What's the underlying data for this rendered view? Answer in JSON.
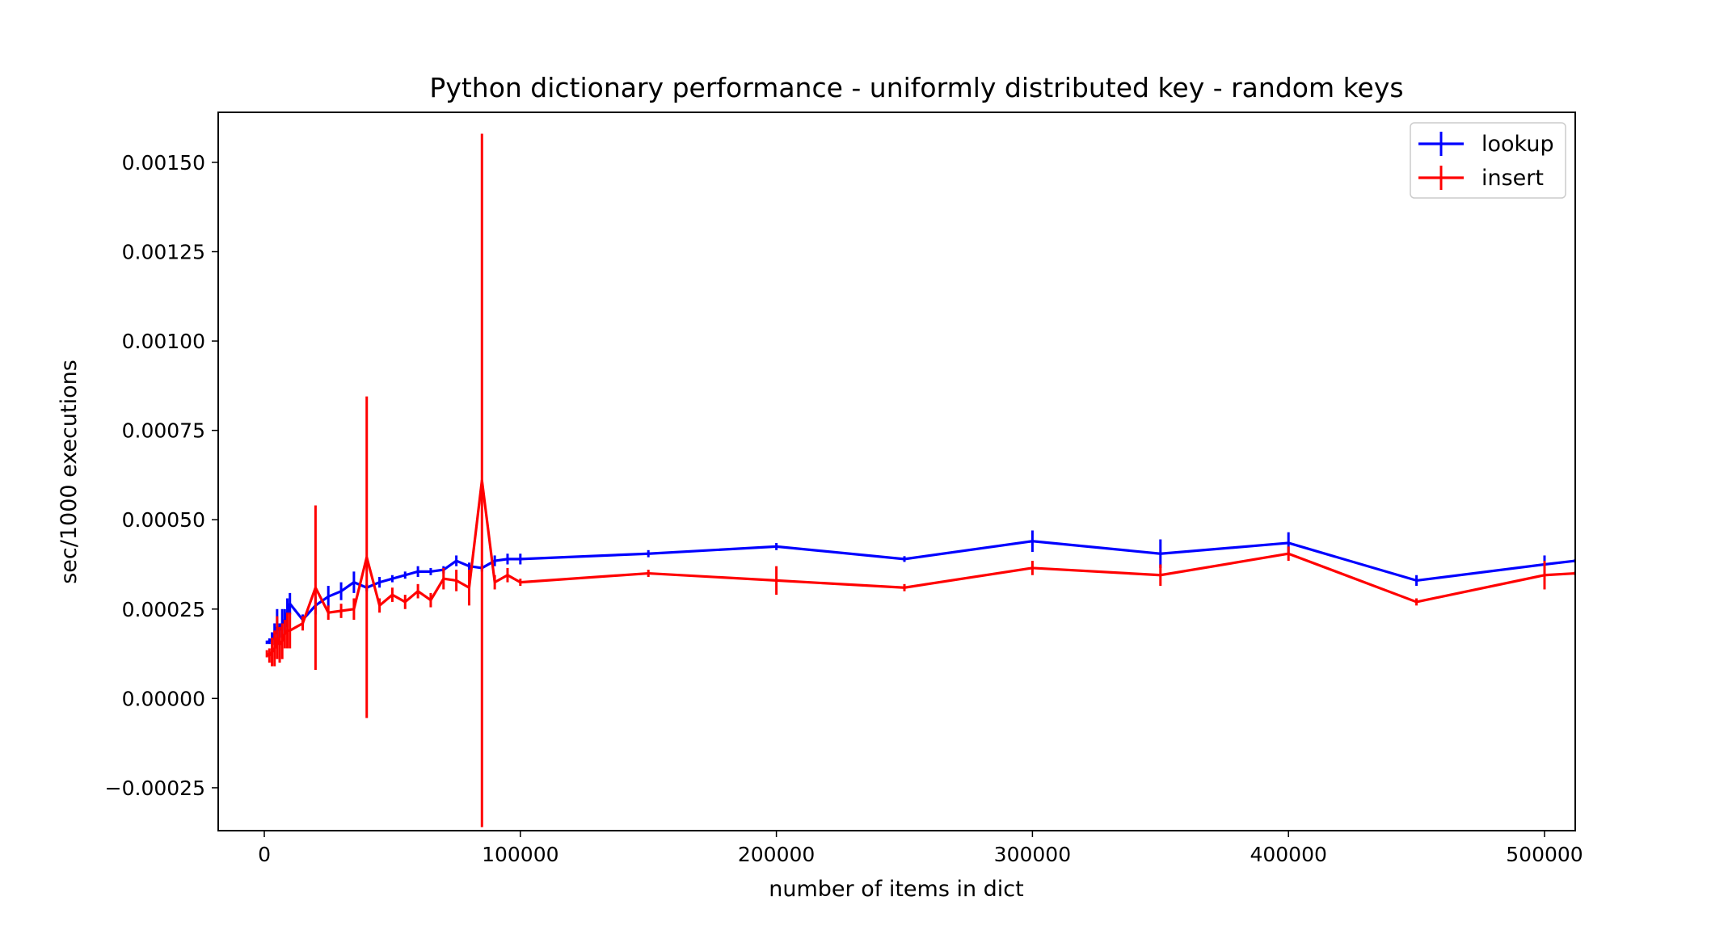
{
  "chart_data": {
    "type": "line",
    "title": "Python dictionary performance - uniformly distributed key - random keys",
    "xlabel": "number of items in dict",
    "ylabel": "sec/1000 executions",
    "xlim": [
      -18000,
      512000
    ],
    "ylim": [
      -0.00037,
      0.00164
    ],
    "x_ticks": [
      0,
      100000,
      200000,
      300000,
      400000,
      500000
    ],
    "x_tick_labels": [
      "0",
      "100000",
      "200000",
      "300000",
      "400000",
      "500000"
    ],
    "y_ticks": [
      -0.00025,
      0.0,
      0.00025,
      0.0005,
      0.00075,
      0.001,
      0.00125,
      0.0015
    ],
    "y_tick_labels": [
      "−0.00025",
      "0.00000",
      "0.00025",
      "0.00050",
      "0.00075",
      "0.00100",
      "0.00125",
      "0.00150"
    ],
    "grid": false,
    "legend_position": "top-right",
    "series": [
      {
        "name": "lookup",
        "color": "#0000ff",
        "x": [
          1000,
          2000,
          3000,
          4000,
          5000,
          6000,
          7000,
          8000,
          9000,
          10000,
          15000,
          20000,
          25000,
          30000,
          35000,
          40000,
          45000,
          50000,
          55000,
          60000,
          65000,
          70000,
          75000,
          80000,
          85000,
          90000,
          95000,
          100000,
          150000,
          200000,
          250000,
          300000,
          350000,
          400000,
          450000,
          500000,
          512000
        ],
        "y": [
          0.000157,
          0.00016,
          0.000165,
          0.00018,
          0.0002,
          0.00019,
          0.00021,
          0.00022,
          0.00024,
          0.000265,
          0.00022,
          0.00026,
          0.000285,
          0.0003,
          0.000325,
          0.00031,
          0.000325,
          0.000335,
          0.000345,
          0.000355,
          0.000355,
          0.00036,
          0.000385,
          0.00037,
          0.000365,
          0.000385,
          0.00039,
          0.00039,
          0.000405,
          0.000425,
          0.00039,
          0.00044,
          0.000405,
          0.000435,
          0.00033,
          0.000375,
          0.000385
        ],
        "err": [
          5e-06,
          8e-06,
          2e-05,
          3e-05,
          5e-05,
          2e-05,
          4e-05,
          3e-05,
          4e-05,
          3e-05,
          1.5e-05,
          2.5e-05,
          3e-05,
          2.5e-05,
          3e-05,
          1e-05,
          1.5e-05,
          1e-05,
          1e-05,
          1.5e-05,
          1e-05,
          1e-05,
          1.5e-05,
          1e-05,
          1e-05,
          1.5e-05,
          1.5e-05,
          1.5e-05,
          1e-05,
          1e-05,
          8e-06,
          3e-05,
          4e-05,
          3e-05,
          1.5e-05,
          2.5e-05,
          5e-06
        ]
      },
      {
        "name": "insert",
        "color": "#ff0000",
        "x": [
          1000,
          2000,
          3000,
          4000,
          5000,
          6000,
          7000,
          8000,
          9000,
          10000,
          15000,
          20000,
          25000,
          30000,
          35000,
          40000,
          45000,
          50000,
          55000,
          60000,
          65000,
          70000,
          75000,
          80000,
          85000,
          90000,
          95000,
          100000,
          150000,
          200000,
          250000,
          300000,
          350000,
          400000,
          450000,
          500000,
          512000
        ],
        "y": [
          0.000125,
          0.00012,
          0.00013,
          0.00014,
          0.00017,
          0.00015,
          0.00016,
          0.00018,
          0.00019,
          0.00019,
          0.00021,
          0.00031,
          0.00024,
          0.000245,
          0.00025,
          0.000395,
          0.00026,
          0.00029,
          0.00027,
          0.0003,
          0.000275,
          0.000335,
          0.00033,
          0.00031,
          0.00061,
          0.000325,
          0.000345,
          0.000325,
          0.00035,
          0.00033,
          0.00031,
          0.000365,
          0.000345,
          0.000405,
          0.00027,
          0.000345,
          0.00035
        ],
        "err": [
          1e-05,
          2e-05,
          4e-05,
          5e-05,
          6e-05,
          5e-05,
          5e-05,
          4e-05,
          5e-05,
          5e-05,
          2e-05,
          0.00023,
          2e-05,
          2e-05,
          3e-05,
          0.00045,
          2e-05,
          2e-05,
          2e-05,
          2e-05,
          2e-05,
          3e-05,
          3e-05,
          5e-05,
          0.00097,
          2e-05,
          2e-05,
          1e-05,
          1e-05,
          4e-05,
          1e-05,
          2e-05,
          3e-05,
          2e-05,
          1e-05,
          4e-05,
          5e-06
        ]
      }
    ]
  }
}
